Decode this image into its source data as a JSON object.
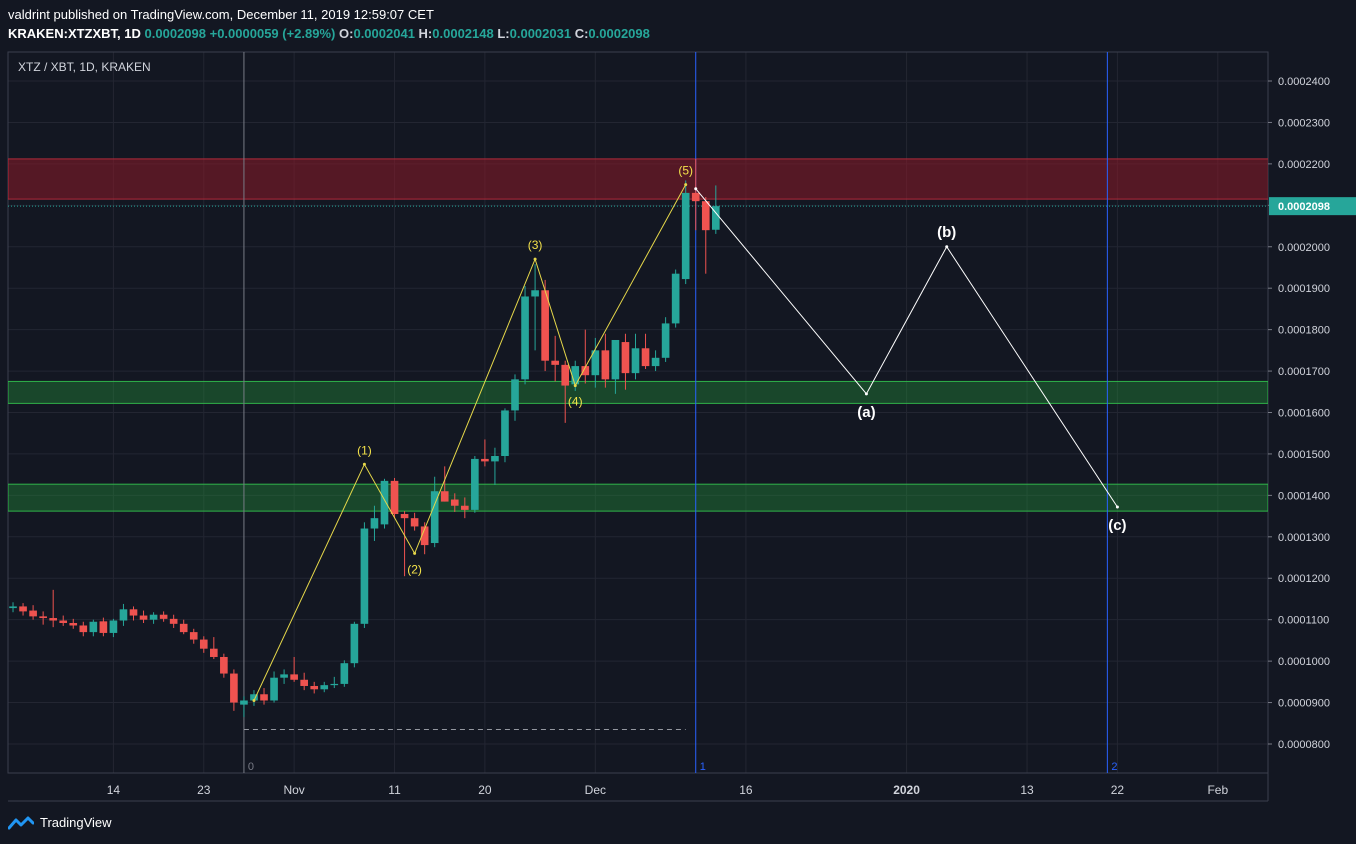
{
  "header": {
    "publish_line": "valdrint published on TradingView.com, December 11, 2019 12:59:07 CET",
    "symbol": "KRAKEN:XTZXBT, 1D",
    "last": "0.0002098",
    "change": "+0.0000059 (+2.89%)",
    "o_label": "O:",
    "o_value": "0.0002041",
    "h_label": "H:",
    "h_value": "0.0002148",
    "l_label": "L:",
    "l_value": "0.0002031",
    "c_label": "C:",
    "c_value": "0.0002098"
  },
  "footer": {
    "brand": "TradingView"
  },
  "colors": {
    "background": "#131722",
    "up": "#26a69a",
    "down": "#ef5350",
    "resistance_zone": "#7f1d2a",
    "support_zone": "#1f7a34",
    "impulse_line": "#e6d84a",
    "correction_line": "#ffffff",
    "vline": "#2962ff",
    "price_label": "#26a69a"
  },
  "chart_data": {
    "type": "candlestick",
    "title": "XTZ / XBT, 1D, KRAKEN",
    "ylim": [
      7.3e-05,
      0.000247
    ],
    "y_ticks": [
      "0.0002400",
      "0.0002300",
      "0.0002200",
      "0.0002100",
      "0.0002000",
      "0.0001900",
      "0.0001800",
      "0.0001700",
      "0.0001600",
      "0.0001500",
      "0.0001400",
      "0.0001300",
      "0.0001200",
      "0.0001100",
      "0.0001000",
      "0.0000900",
      "0.0000800"
    ],
    "y_tick_values": [
      0.00024,
      0.00023,
      0.00022,
      0.00021,
      0.0002,
      0.00019,
      0.00018,
      0.00017,
      0.00016,
      0.00015,
      0.00014,
      0.00013,
      0.00012,
      0.00011,
      0.0001,
      9e-05,
      8e-05
    ],
    "x_ticks": [
      {
        "label": "14",
        "date": "2019-10-14"
      },
      {
        "label": "23",
        "date": "2019-10-23"
      },
      {
        "label": "Nov",
        "date": "2019-11-01"
      },
      {
        "label": "11",
        "date": "2019-11-11"
      },
      {
        "label": "20",
        "date": "2019-11-20"
      },
      {
        "label": "Dec",
        "date": "2019-12-01"
      },
      {
        "label": "16",
        "date": "2019-12-16"
      },
      {
        "label": "2020",
        "date": "2020-01-01"
      },
      {
        "label": "13",
        "date": "2020-01-13"
      },
      {
        "label": "22",
        "date": "2020-01-22"
      },
      {
        "label": "Feb",
        "date": "2020-02-01"
      }
    ],
    "x_range": [
      "2019-10-04",
      "2020-02-06"
    ],
    "last_price": {
      "value": 0.0002098,
      "label": "0.0002098"
    },
    "candles": [
      {
        "date": "2019-10-04",
        "o": 0.0001128,
        "h": 0.0001142,
        "l": 0.0001118,
        "c": 0.0001132
      },
      {
        "date": "2019-10-05",
        "o": 0.0001132,
        "h": 0.000114,
        "l": 0.000111,
        "c": 0.000112
      },
      {
        "date": "2019-10-06",
        "o": 0.0001122,
        "h": 0.0001135,
        "l": 0.00011,
        "c": 0.0001108
      },
      {
        "date": "2019-10-07",
        "o": 0.0001108,
        "h": 0.000112,
        "l": 0.0001088,
        "c": 0.0001104
      },
      {
        "date": "2019-10-08",
        "o": 0.0001104,
        "h": 0.0001172,
        "l": 0.0001082,
        "c": 0.0001098
      },
      {
        "date": "2019-10-09",
        "o": 0.0001098,
        "h": 0.000111,
        "l": 0.0001085,
        "c": 0.0001092
      },
      {
        "date": "2019-10-10",
        "o": 0.0001092,
        "h": 0.0001102,
        "l": 0.0001078,
        "c": 0.0001086
      },
      {
        "date": "2019-10-11",
        "o": 0.0001086,
        "h": 0.0001095,
        "l": 0.000106,
        "c": 0.000107
      },
      {
        "date": "2019-10-12",
        "o": 0.000107,
        "h": 0.00011,
        "l": 0.000106,
        "c": 0.0001095
      },
      {
        "date": "2019-10-13",
        "o": 0.0001096,
        "h": 0.0001105,
        "l": 0.000106,
        "c": 0.0001068
      },
      {
        "date": "2019-10-14",
        "o": 0.0001068,
        "h": 0.0001102,
        "l": 0.0001058,
        "c": 0.0001098
      },
      {
        "date": "2019-10-15",
        "o": 0.0001098,
        "h": 0.0001138,
        "l": 0.0001085,
        "c": 0.0001125
      },
      {
        "date": "2019-10-16",
        "o": 0.0001125,
        "h": 0.0001132,
        "l": 0.0001098,
        "c": 0.000111
      },
      {
        "date": "2019-10-17",
        "o": 0.000111,
        "h": 0.0001122,
        "l": 0.0001092,
        "c": 0.00011
      },
      {
        "date": "2019-10-18",
        "o": 0.00011,
        "h": 0.0001118,
        "l": 0.000109,
        "c": 0.0001112
      },
      {
        "date": "2019-10-19",
        "o": 0.0001112,
        "h": 0.000112,
        "l": 0.0001095,
        "c": 0.0001102
      },
      {
        "date": "2019-10-20",
        "o": 0.0001102,
        "h": 0.0001112,
        "l": 0.000108,
        "c": 0.000109
      },
      {
        "date": "2019-10-21",
        "o": 0.000109,
        "h": 0.00011,
        "l": 0.0001065,
        "c": 0.000107
      },
      {
        "date": "2019-10-22",
        "o": 0.000107,
        "h": 0.0001078,
        "l": 0.0001042,
        "c": 0.0001052
      },
      {
        "date": "2019-10-23",
        "o": 0.0001052,
        "h": 0.000106,
        "l": 0.000102,
        "c": 0.000103
      },
      {
        "date": "2019-10-24",
        "o": 0.000103,
        "h": 0.0001058,
        "l": 0.0001005,
        "c": 0.000101
      },
      {
        "date": "2019-10-25",
        "o": 0.000101,
        "h": 0.0001018,
        "l": 9.6e-05,
        "c": 9.7e-05
      },
      {
        "date": "2019-10-26",
        "o": 9.7e-05,
        "h": 9.8e-05,
        "l": 8.8e-05,
        "c": 9e-05
      },
      {
        "date": "2019-10-27",
        "o": 8.95e-05,
        "h": 9.15e-05,
        "l": 8.65e-05,
        "c": 9.05e-05
      },
      {
        "date": "2019-10-28",
        "o": 9.05e-05,
        "h": 9.3e-05,
        "l": 8.92e-05,
        "c": 9.2e-05
      },
      {
        "date": "2019-10-29",
        "o": 9.2e-05,
        "h": 9.35e-05,
        "l": 8.95e-05,
        "c": 9.05e-05
      },
      {
        "date": "2019-10-30",
        "o": 9.05e-05,
        "h": 9.75e-05,
        "l": 9e-05,
        "c": 9.6e-05
      },
      {
        "date": "2019-10-31",
        "o": 9.6e-05,
        "h": 9.8e-05,
        "l": 9.45e-05,
        "c": 9.68e-05
      },
      {
        "date": "2019-11-01",
        "o": 9.68e-05,
        "h": 0.000101,
        "l": 9.5e-05,
        "c": 9.55e-05
      },
      {
        "date": "2019-11-02",
        "o": 9.55e-05,
        "h": 9.72e-05,
        "l": 9.3e-05,
        "c": 9.4e-05
      },
      {
        "date": "2019-11-03",
        "o": 9.4e-05,
        "h": 9.5e-05,
        "l": 9.22e-05,
        "c": 9.32e-05
      },
      {
        "date": "2019-11-04",
        "o": 9.32e-05,
        "h": 9.5e-05,
        "l": 9.25e-05,
        "c": 9.42e-05
      },
      {
        "date": "2019-11-05",
        "o": 9.42e-05,
        "h": 9.62e-05,
        "l": 9.35e-05,
        "c": 9.45e-05
      },
      {
        "date": "2019-11-06",
        "o": 9.45e-05,
        "h": 0.0001002,
        "l": 9.38e-05,
        "c": 9.95e-05
      },
      {
        "date": "2019-11-07",
        "o": 9.95e-05,
        "h": 0.0001095,
        "l": 9.85e-05,
        "c": 0.000109
      },
      {
        "date": "2019-11-08",
        "o": 0.000109,
        "h": 0.0001335,
        "l": 0.000108,
        "c": 0.000132
      },
      {
        "date": "2019-11-09",
        "o": 0.000132,
        "h": 0.0001375,
        "l": 0.000129,
        "c": 0.0001345
      },
      {
        "date": "2019-11-10",
        "o": 0.000133,
        "h": 0.000144,
        "l": 0.000132,
        "c": 0.0001435
      },
      {
        "date": "2019-11-11",
        "o": 0.0001435,
        "h": 0.0001442,
        "l": 0.0001345,
        "c": 0.0001355
      },
      {
        "date": "2019-11-12",
        "o": 0.0001355,
        "h": 0.0001362,
        "l": 0.0001205,
        "c": 0.0001345
      },
      {
        "date": "2019-11-13",
        "o": 0.0001345,
        "h": 0.0001358,
        "l": 0.0001315,
        "c": 0.0001325
      },
      {
        "date": "2019-11-14",
        "o": 0.0001325,
        "h": 0.0001335,
        "l": 0.0001258,
        "c": 0.000128
      },
      {
        "date": "2019-11-15",
        "o": 0.0001285,
        "h": 0.0001445,
        "l": 0.0001275,
        "c": 0.000141
      },
      {
        "date": "2019-11-16",
        "o": 0.000141,
        "h": 0.000147,
        "l": 0.0001385,
        "c": 0.0001385
      },
      {
        "date": "2019-11-17",
        "o": 0.000139,
        "h": 0.0001405,
        "l": 0.000136,
        "c": 0.0001375
      },
      {
        "date": "2019-11-18",
        "o": 0.0001375,
        "h": 0.0001395,
        "l": 0.0001345,
        "c": 0.0001365
      },
      {
        "date": "2019-11-19",
        "o": 0.0001365,
        "h": 0.0001495,
        "l": 0.0001358,
        "c": 0.0001488
      },
      {
        "date": "2019-11-20",
        "o": 0.0001488,
        "h": 0.0001535,
        "l": 0.000147,
        "c": 0.0001482
      },
      {
        "date": "2019-11-21",
        "o": 0.0001482,
        "h": 0.0001515,
        "l": 0.0001425,
        "c": 0.0001495
      },
      {
        "date": "2019-11-22",
        "o": 0.0001495,
        "h": 0.000161,
        "l": 0.000148,
        "c": 0.0001605
      },
      {
        "date": "2019-11-23",
        "o": 0.0001605,
        "h": 0.0001692,
        "l": 0.000158,
        "c": 0.000168
      },
      {
        "date": "2019-11-24",
        "o": 0.000168,
        "h": 0.0001905,
        "l": 0.0001668,
        "c": 0.000188
      },
      {
        "date": "2019-11-25",
        "o": 0.000188,
        "h": 0.0001958,
        "l": 0.000175,
        "c": 0.0001895
      },
      {
        "date": "2019-11-26",
        "o": 0.0001895,
        "h": 0.000192,
        "l": 0.00017,
        "c": 0.0001725
      },
      {
        "date": "2019-11-27",
        "o": 0.0001725,
        "h": 0.0001785,
        "l": 0.0001675,
        "c": 0.0001715
      },
      {
        "date": "2019-11-28",
        "o": 0.0001715,
        "h": 0.0001725,
        "l": 0.0001575,
        "c": 0.0001665
      },
      {
        "date": "2019-11-29",
        "o": 0.0001668,
        "h": 0.0001725,
        "l": 0.0001652,
        "c": 0.0001712
      },
      {
        "date": "2019-11-30",
        "o": 0.0001712,
        "h": 0.00018,
        "l": 0.000167,
        "c": 0.000169
      },
      {
        "date": "2019-12-01",
        "o": 0.000169,
        "h": 0.000178,
        "l": 0.000166,
        "c": 0.000175
      },
      {
        "date": "2019-12-02",
        "o": 0.000175,
        "h": 0.000179,
        "l": 0.000166,
        "c": 0.000168
      },
      {
        "date": "2019-12-03",
        "o": 0.000168,
        "h": 0.0001775,
        "l": 0.0001645,
        "c": 0.0001775
      },
      {
        "date": "2019-12-04",
        "o": 0.000177,
        "h": 0.000179,
        "l": 0.0001655,
        "c": 0.0001695
      },
      {
        "date": "2019-12-05",
        "o": 0.0001695,
        "h": 0.000179,
        "l": 0.000168,
        "c": 0.0001755
      },
      {
        "date": "2019-12-06",
        "o": 0.0001755,
        "h": 0.000179,
        "l": 0.0001705,
        "c": 0.0001712
      },
      {
        "date": "2019-12-07",
        "o": 0.0001712,
        "h": 0.000175,
        "l": 0.00017,
        "c": 0.0001732
      },
      {
        "date": "2019-12-08",
        "o": 0.0001732,
        "h": 0.000183,
        "l": 0.0001722,
        "c": 0.0001815
      },
      {
        "date": "2019-12-09",
        "o": 0.0001815,
        "h": 0.0001945,
        "l": 0.0001805,
        "c": 0.0001935
      },
      {
        "date": "2019-12-10",
        "o": 0.0001922,
        "h": 0.000216,
        "l": 0.000191,
        "c": 0.000213
      },
      {
        "date": "2019-12-11",
        "o": 0.000213,
        "h": 0.0002212,
        "l": 0.000204,
        "c": 0.000211
      },
      {
        "date": "2019-12-12",
        "o": 0.000211,
        "h": 0.000212,
        "l": 0.0001935,
        "c": 0.000204
      },
      {
        "date": "2019-12-13",
        "o": 0.0002041,
        "h": 0.0002148,
        "l": 0.0002031,
        "c": 0.0002098
      }
    ],
    "zones": [
      {
        "kind": "resistance",
        "from": 0.0002115,
        "to": 0.0002212,
        "start": "2019-10-04",
        "end": "2020-02-10"
      },
      {
        "kind": "support",
        "from": 0.0001622,
        "to": 0.0001675,
        "start": "2019-10-04",
        "end": "2020-02-06"
      },
      {
        "kind": "support",
        "from": 0.0001362,
        "to": 0.0001427,
        "start": "2019-10-04",
        "end": "2020-02-06"
      }
    ],
    "impulse_wave": [
      {
        "label": "",
        "date": "2019-10-28",
        "value": 9.05e-05
      },
      {
        "label": "(1)",
        "date": "2019-11-08",
        "value": 0.0001475
      },
      {
        "label": "(2)",
        "date": "2019-11-13",
        "value": 0.000126
      },
      {
        "label": "(3)",
        "date": "2019-11-25",
        "value": 0.000197
      },
      {
        "label": "(4)",
        "date": "2019-11-29",
        "value": 0.0001665
      },
      {
        "label": "(5)",
        "date": "2019-12-10",
        "value": 0.000215
      }
    ],
    "correction_wave": [
      {
        "label": "",
        "date": "2019-12-11",
        "value": 0.000214
      },
      {
        "label": "(a)",
        "date": "2019-12-28",
        "value": 0.0001645
      },
      {
        "label": "(b)",
        "date": "2020-01-05",
        "value": 0.0002
      },
      {
        "label": "(c)",
        "date": "2020-01-22",
        "value": 0.0001372
      }
    ],
    "vertical_lines": [
      {
        "label": "0",
        "date": "2019-10-27",
        "color": "#787b86"
      },
      {
        "label": "1",
        "date": "2019-12-11",
        "color": "#2962ff"
      },
      {
        "label": "2",
        "date": "2020-01-21",
        "color": "#2962ff"
      }
    ],
    "dashed_level": {
      "value": 8.35e-05,
      "start": "2019-10-27",
      "end": "2019-12-10"
    },
    "grid": true
  }
}
